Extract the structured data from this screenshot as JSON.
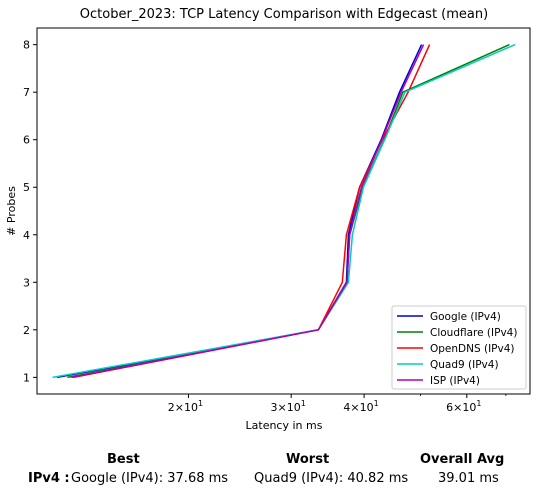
{
  "chart_data": {
    "type": "line",
    "title": "October_2023: TCP Latency Comparison with Edgecast (mean)",
    "xlabel": "Latency in ms",
    "ylabel": "# Probes",
    "xscale": "log",
    "xlim": [
      11.0,
      77.0
    ],
    "ylim": [
      0.65,
      8.35
    ],
    "xticks": [
      {
        "value": 20,
        "base": "2×10",
        "exp": "1"
      },
      {
        "value": 30,
        "base": "3×10",
        "exp": "1"
      },
      {
        "value": 40,
        "base": "4×10",
        "exp": "1"
      },
      {
        "value": 60,
        "base": "6×10",
        "exp": "1"
      }
    ],
    "yticks": [
      "1",
      "2",
      "3",
      "4",
      "5",
      "6",
      "7",
      "8"
    ],
    "legend_position": "bottom-right",
    "grid": false,
    "series": [
      {
        "name": "Google (IPv4)",
        "color": "#0000cc",
        "x": [
          11.9,
          33.4,
          37.3,
          37.6,
          39.3,
          42.8,
          46.0,
          50.2
        ],
        "y": [
          1,
          2,
          3,
          4,
          5,
          6,
          7,
          8
        ]
      },
      {
        "name": "Cloudflare (IPv4)",
        "color": "#008000",
        "x": [
          12.4,
          33.4,
          37.4,
          37.8,
          39.8,
          43.3,
          46.6,
          71.0
        ],
        "y": [
          1,
          2,
          3,
          4,
          5,
          6,
          7,
          8
        ]
      },
      {
        "name": "OpenDNS (IPv4)",
        "color": "#ff0000",
        "x": [
          12.7,
          33.4,
          36.7,
          37.3,
          39.3,
          43.0,
          47.6,
          51.8
        ],
        "y": [
          1,
          2,
          3,
          4,
          5,
          6,
          7,
          8
        ]
      },
      {
        "name": "Quad9 (IPv4)",
        "color": "#00cccc",
        "x": [
          11.7,
          33.4,
          37.6,
          38.2,
          39.9,
          43.4,
          47.0,
          72.6
        ],
        "y": [
          1,
          2,
          3,
          4,
          5,
          6,
          7,
          8
        ]
      },
      {
        "name": "ISP (IPv4)",
        "color": "#b000b0",
        "x": [
          12.6,
          33.4,
          37.4,
          37.8,
          39.6,
          42.9,
          46.3,
          50.6
        ],
        "y": [
          1,
          2,
          3,
          4,
          5,
          6,
          7,
          8
        ]
      }
    ]
  },
  "summary": {
    "best_label": "Best",
    "worst_label": "Worst",
    "avg_label": "Overall Avg",
    "row_label": "IPv4 :",
    "best_value": "Google (IPv4): 37.68 ms",
    "worst_value": "Quad9 (IPv4): 40.82 ms",
    "avg_value": "39.01 ms"
  }
}
